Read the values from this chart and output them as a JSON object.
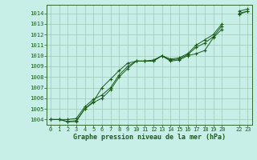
{
  "title": "Graphe pression niveau de la mer (hPa)",
  "bg_color": "#c8eee8",
  "plot_bg_color": "#c8eee8",
  "grid_color": "#a0c8b8",
  "line_color": "#1a5c1a",
  "marker_color": "#1a5c1a",
  "text_color": "#1a5c1a",
  "ylim": [
    1003.5,
    1014.8
  ],
  "yticks": [
    1004,
    1005,
    1006,
    1007,
    1008,
    1009,
    1010,
    1011,
    1012,
    1013,
    1014
  ],
  "xlim": [
    -0.5,
    23.5
  ],
  "xtick_positions": [
    0,
    1,
    2,
    3,
    4,
    5,
    6,
    7,
    8,
    9,
    10,
    11,
    12,
    13,
    14,
    15,
    16,
    17,
    18,
    19,
    20,
    22,
    23
  ],
  "xtick_labels": [
    "0",
    "1",
    "2",
    "3",
    "4",
    "5",
    "6",
    "7",
    "8",
    "9",
    "10",
    "11",
    "12",
    "13",
    "14",
    "15",
    "16",
    "17",
    "18",
    "19",
    "20",
    "22",
    "23"
  ],
  "series": [
    [
      1004.0,
      1004.0,
      1003.8,
      1003.8,
      1005.0,
      1005.7,
      1007.0,
      1007.8,
      1008.6,
      1009.3,
      1009.5,
      1009.5,
      1009.5,
      1010.0,
      1009.5,
      1009.6,
      1010.0,
      1010.2,
      1010.5,
      1011.7,
      1012.5,
      null,
      1014.2,
      1014.4
    ],
    [
      1004.0,
      1004.0,
      1003.8,
      1003.9,
      1005.0,
      1005.6,
      1006.0,
      1006.8,
      1008.0,
      1008.8,
      1009.5,
      1009.5,
      1009.5,
      1010.0,
      1009.6,
      1009.7,
      1010.1,
      1010.8,
      1011.2,
      1011.8,
      1012.8,
      null,
      1013.9,
      1014.2
    ],
    [
      1004.0,
      1004.0,
      1004.0,
      1004.1,
      1005.2,
      1005.9,
      1006.3,
      1007.0,
      1008.2,
      1009.0,
      1009.5,
      1009.5,
      1009.6,
      1010.0,
      1009.7,
      1009.8,
      1010.2,
      1011.0,
      1011.5,
      1012.0,
      1013.0,
      null,
      1014.0,
      1014.2
    ]
  ]
}
